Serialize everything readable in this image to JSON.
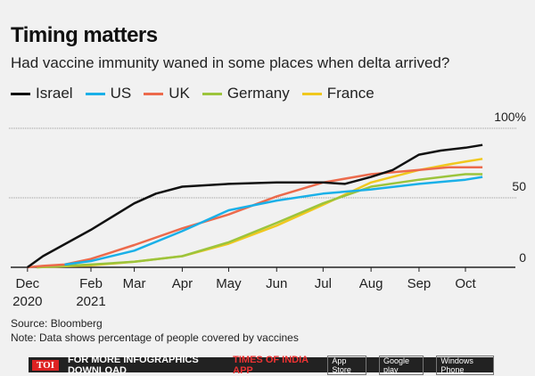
{
  "title": "Timing matters",
  "subtitle": "Had vaccine immunity waned in some places when delta arrived?",
  "source": "Source: Bloomberg",
  "note": "Note: Data shows percentage of people covered by vaccines",
  "banner": {
    "logo": "TOI",
    "text": "FOR MORE  INFOGRAPHICS DOWNLOAD",
    "app": "TIMES OF INDIA  APP",
    "stores": [
      "App Store",
      "Google play",
      "Windows Phone"
    ]
  },
  "chart_data": {
    "type": "line",
    "title": "Timing matters",
    "ylim": [
      0,
      100
    ],
    "yticks": [
      {
        "value": 0,
        "label": "0"
      },
      {
        "value": 50,
        "label": "50"
      },
      {
        "value": 100,
        "label": "100%"
      }
    ],
    "xlim": [
      "2020-12-10",
      "2021-10-31"
    ],
    "xticks": [
      {
        "date": "2020-12-22",
        "label": "Dec",
        "label2": "2020"
      },
      {
        "date": "2021-02-01",
        "label": "Feb",
        "label2": "2021"
      },
      {
        "date": "2021-03-01",
        "label": "Mar"
      },
      {
        "date": "2021-04-01",
        "label": "Apr"
      },
      {
        "date": "2021-05-01",
        "label": "May"
      },
      {
        "date": "2021-06-01",
        "label": "Jun"
      },
      {
        "date": "2021-07-01",
        "label": "Jul"
      },
      {
        "date": "2021-08-01",
        "label": "Aug"
      },
      {
        "date": "2021-09-01",
        "label": "Sep"
      },
      {
        "date": "2021-10-01",
        "label": "Oct"
      }
    ],
    "grid": "horizontal dotted at 50 and 100",
    "legend": "top",
    "series": [
      {
        "name": "Israel",
        "color": "#111111",
        "x": [
          "2020-12-22",
          "2021-01-01",
          "2021-02-01",
          "2021-03-01",
          "2021-03-15",
          "2021-04-01",
          "2021-05-01",
          "2021-06-01",
          "2021-07-01",
          "2021-07-15",
          "2021-08-01",
          "2021-08-15",
          "2021-09-01",
          "2021-09-15",
          "2021-10-01",
          "2021-10-12"
        ],
        "y": [
          0,
          8,
          27,
          46,
          53,
          58,
          60,
          61,
          61,
          60,
          65,
          70,
          81,
          84,
          86,
          88
        ]
      },
      {
        "name": "US",
        "color": "#1ab0e8",
        "x": [
          "2021-01-15",
          "2021-02-01",
          "2021-03-01",
          "2021-04-01",
          "2021-05-01",
          "2021-06-01",
          "2021-07-01",
          "2021-08-01",
          "2021-09-01",
          "2021-10-01",
          "2021-10-12"
        ],
        "y": [
          2,
          4.5,
          12,
          26,
          41,
          48,
          53,
          56,
          60,
          63,
          65
        ]
      },
      {
        "name": "UK",
        "color": "#ec6a4c",
        "x": [
          "2020-12-22",
          "2021-01-01",
          "2021-01-15",
          "2021-02-01",
          "2021-03-01",
          "2021-04-01",
          "2021-05-01",
          "2021-06-01",
          "2021-07-01",
          "2021-08-01",
          "2021-09-01",
          "2021-09-20",
          "2021-10-12"
        ],
        "y": [
          0,
          1,
          2,
          6,
          16,
          28,
          38,
          51,
          61,
          67,
          70,
          72,
          72
        ]
      },
      {
        "name": "Germany",
        "color": "#9cc43c",
        "x": [
          "2020-12-28",
          "2021-02-01",
          "2021-03-01",
          "2021-04-01",
          "2021-05-01",
          "2021-06-01",
          "2021-07-01",
          "2021-08-01",
          "2021-09-01",
          "2021-10-01",
          "2021-10-12"
        ],
        "y": [
          0,
          2,
          4,
          8,
          18,
          32,
          46,
          58,
          63,
          67,
          67
        ]
      },
      {
        "name": "France",
        "color": "#f0c81e",
        "x": [
          "2020-12-28",
          "2021-02-01",
          "2021-03-01",
          "2021-04-01",
          "2021-05-01",
          "2021-06-01",
          "2021-07-01",
          "2021-08-01",
          "2021-09-01",
          "2021-09-20",
          "2021-10-01",
          "2021-10-12"
        ],
        "y": [
          0,
          1.5,
          4,
          8,
          17,
          30,
          45,
          61,
          70,
          74,
          76,
          78
        ]
      }
    ]
  }
}
